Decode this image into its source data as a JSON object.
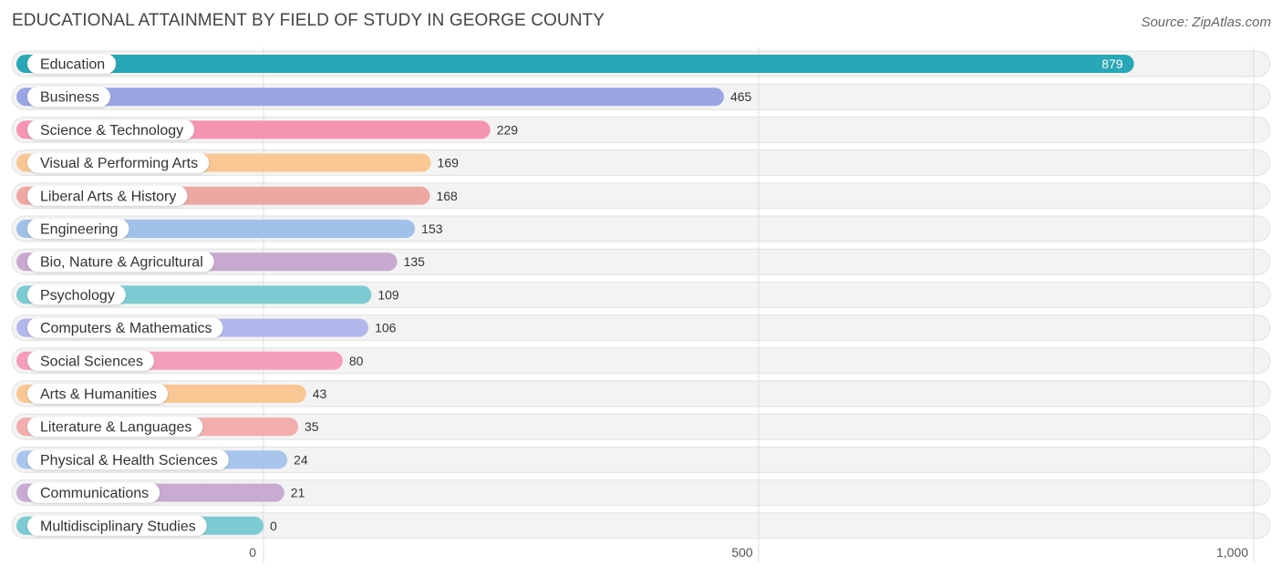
{
  "title": "EDUCATIONAL ATTAINMENT BY FIELD OF STUDY IN GEORGE COUNTY",
  "source": "Source: ZipAtlas.com",
  "chart_data": {
    "type": "bar",
    "orientation": "horizontal",
    "categories": [
      "Education",
      "Business",
      "Science & Technology",
      "Visual & Performing Arts",
      "Liberal Arts & History",
      "Engineering",
      "Bio, Nature & Agricultural",
      "Psychology",
      "Computers & Mathematics",
      "Social Sciences",
      "Arts & Humanities",
      "Literature & Languages",
      "Physical & Health Sciences",
      "Communications",
      "Multidisciplinary Studies"
    ],
    "values": [
      879,
      465,
      229,
      169,
      168,
      153,
      135,
      109,
      106,
      80,
      43,
      35,
      24,
      21,
      0
    ],
    "value_labels": [
      "879",
      "465",
      "229",
      "169",
      "168",
      "153",
      "135",
      "109",
      "106",
      "80",
      "43",
      "35",
      "24",
      "21",
      "0"
    ],
    "colors": [
      "#2aa7b6",
      "#9aa6e4",
      "#f595b2",
      "#f9c794",
      "#eea8a4",
      "#a0c1ea",
      "#c9a8d0",
      "#7ccbd2",
      "#b3b8ec",
      "#f59eb9",
      "#f9c794",
      "#f1aeac",
      "#a8c5ec",
      "#c9aad3",
      "#7ccbd2"
    ],
    "xlim": [
      0,
      1000
    ],
    "xticks": [
      0,
      500,
      1000
    ],
    "xtick_labels": [
      "0",
      "500",
      "1,000"
    ],
    "grid": true,
    "xlabel": "",
    "ylabel": ""
  }
}
